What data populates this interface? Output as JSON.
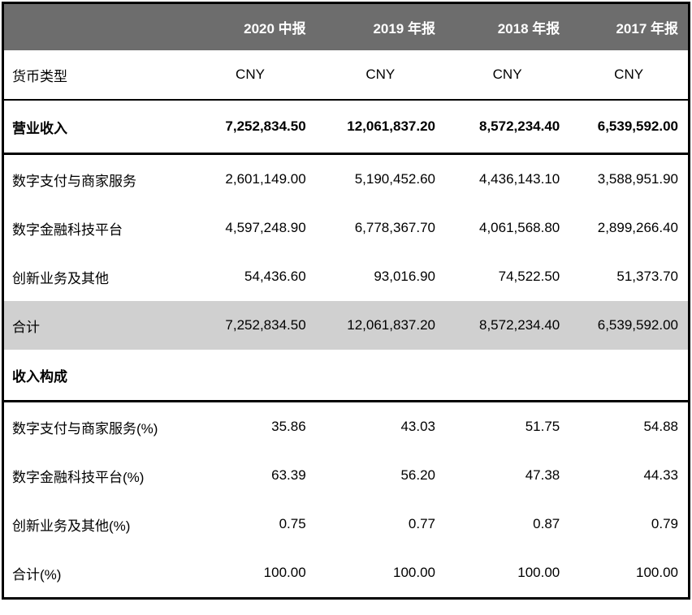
{
  "table": {
    "columns": {
      "label": "",
      "periods": [
        "2020 中报",
        "2019 年报",
        "2018 年报",
        "2017 年报"
      ]
    },
    "rows": [
      {
        "label": "货币类型",
        "values": [
          "CNY",
          "CNY",
          "CNY",
          "CNY"
        ]
      },
      {
        "label": "营业收入",
        "values": [
          "7,252,834.50",
          "12,061,837.20",
          "8,572,234.40",
          "6,539,592.00"
        ]
      },
      {
        "label": "数字支付与商家服务",
        "values": [
          "2,601,149.00",
          "5,190,452.60",
          "4,436,143.10",
          "3,588,951.90"
        ]
      },
      {
        "label": "数字金融科技平台",
        "values": [
          "4,597,248.90",
          "6,778,367.70",
          "4,061,568.80",
          "2,899,266.40"
        ]
      },
      {
        "label": "创新业务及其他",
        "values": [
          "54,436.60",
          "93,016.90",
          "74,522.50",
          "51,373.70"
        ]
      },
      {
        "label": "合计",
        "values": [
          "7,252,834.50",
          "12,061,837.20",
          "8,572,234.40",
          "6,539,592.00"
        ]
      },
      {
        "label": "收入构成",
        "values": [
          "",
          "",
          "",
          ""
        ]
      },
      {
        "label": "数字支付与商家服务(%)",
        "values": [
          "35.86",
          "43.03",
          "51.75",
          "54.88"
        ]
      },
      {
        "label": "数字金融科技平台(%)",
        "values": [
          "63.39",
          "56.20",
          "47.38",
          "44.33"
        ]
      },
      {
        "label": "创新业务及其他(%)",
        "values": [
          "0.75",
          "0.77",
          "0.87",
          "0.79"
        ]
      },
      {
        "label": "合计(%)",
        "values": [
          "100.00",
          "100.00",
          "100.00",
          "100.00"
        ]
      }
    ]
  },
  "colors": {
    "header_bg": "#6d6d6d",
    "header_text": "#ffffff",
    "total_row_bg": "#d0d0d0",
    "border": "#000000"
  }
}
